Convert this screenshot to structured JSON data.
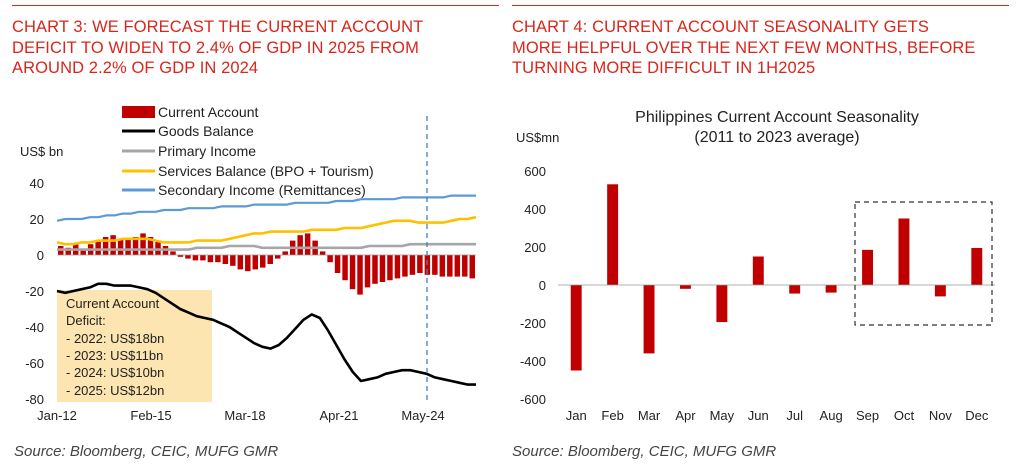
{
  "left": {
    "heading": "CHART 3: WE FORECAST THE CURRENT ACCOUNT DEFICIT TO WIDEN TO 2.4% OF GDP IN 2025 FROM AROUND 2.2% OF GDP IN 2024",
    "heading_lines": [
      "CHART 3: WE FORECAST THE CURRENT ACCOUNT",
      "DEFICIT TO WIDEN TO 2.4% OF GDP IN 2025 FROM",
      "AROUND 2.2% OF GDP IN 2024"
    ],
    "source": "Source: Bloomberg, CEIC, MUFG GMR",
    "annotation_lines": [
      "Current Account",
      "Deficit:",
      "- 2022: US$18bn",
      "- 2023: US$11bn",
      "- 2024: US$10bn",
      "- 2025: US$12bn"
    ]
  },
  "right": {
    "heading_lines": [
      "CHART 4: CURRENT ACCOUNT SEASONALITY GETS",
      "MORE HELPFUL OVER THE NEXT FEW MONTHS, BEFORE",
      "TURNING MORE DIFFICULT IN 1H2025"
    ],
    "source": "Source: Bloomberg, CEIC, MUFG GMR"
  },
  "colors": {
    "accent_red": "#d9261c",
    "current_account": "#c00000",
    "goods": "#000000",
    "primary": "#a6a6a6",
    "services": "#ffc000",
    "secondary": "#5b9bd5",
    "annotation_bg": "#fce5b0",
    "forecast_line": "#4a7ebb"
  },
  "chart_data": [
    {
      "type": "bar+line",
      "title": "",
      "ylabel": "US$ bn",
      "ylim": [
        -80,
        40
      ],
      "yticks": [
        40,
        20,
        0,
        -20,
        -40,
        -60,
        -80
      ],
      "xticks": [
        "Jan-12",
        "Feb-15",
        "Mar-18",
        "Apr-21",
        "May-24"
      ],
      "x_range": [
        "Jan-12",
        "Q4-25"
      ],
      "forecast_marker": "May-24",
      "legend_position": "top",
      "series": [
        {
          "name": "Current Account",
          "kind": "bar",
          "values": [
            5,
            4,
            6,
            3,
            6,
            8,
            10,
            11,
            9,
            9,
            10,
            12,
            10,
            8,
            5,
            2,
            -1,
            -2,
            -3,
            -3,
            -4,
            -4,
            -5,
            -6,
            -8,
            -9,
            -8,
            -7,
            -5,
            -2,
            2,
            8,
            11,
            12,
            8,
            2,
            -4,
            -10,
            -14,
            -19,
            -22,
            -18,
            -16,
            -15,
            -14,
            -13,
            -12,
            -11,
            -10,
            -11,
            -11,
            -12,
            -12,
            -12,
            -12,
            -13
          ]
        },
        {
          "name": "Goods Balance",
          "kind": "line",
          "values": [
            -20,
            -21,
            -20,
            -19,
            -18,
            -16,
            -16,
            -17,
            -17,
            -17,
            -18,
            -19,
            -21,
            -24,
            -27,
            -30,
            -32,
            -34,
            -35,
            -36,
            -38,
            -40,
            -43,
            -46,
            -49,
            -51,
            -52,
            -50,
            -46,
            -41,
            -36,
            -33,
            -35,
            -42,
            -50,
            -58,
            -65,
            -70,
            -69,
            -68,
            -66,
            -65,
            -64,
            -64,
            -65,
            -66,
            -68,
            -69,
            -70,
            -71,
            -72,
            -72
          ]
        },
        {
          "name": "Primary Income",
          "kind": "line",
          "values": [
            3,
            3,
            3,
            3,
            3,
            3,
            3,
            3,
            3,
            3,
            3,
            3,
            3,
            3,
            3,
            3,
            3,
            4,
            4,
            4,
            4,
            5,
            5,
            5,
            5,
            4,
            4,
            4,
            4,
            4,
            4,
            4,
            4,
            4,
            4,
            4,
            4,
            4,
            5,
            5,
            5,
            5,
            5,
            6,
            6,
            6,
            6,
            6,
            6,
            6,
            6,
            6
          ]
        },
        {
          "name": "Services Balance (BPO + Tourism)",
          "kind": "line",
          "values": [
            7,
            6,
            6,
            7,
            7,
            8,
            8,
            8,
            9,
            9,
            9,
            9,
            8,
            7,
            7,
            7,
            7,
            8,
            8,
            8,
            8,
            9,
            10,
            11,
            12,
            12,
            13,
            13,
            13,
            13,
            13,
            14,
            14,
            14,
            14,
            15,
            15,
            15,
            16,
            17,
            18,
            19,
            19,
            19,
            18,
            18,
            18,
            18,
            19,
            20,
            20,
            21
          ]
        },
        {
          "name": "Secondary Income (Remittances)",
          "kind": "line",
          "values": [
            19,
            20,
            20,
            20,
            21,
            21,
            22,
            22,
            23,
            23,
            24,
            24,
            24,
            25,
            25,
            25,
            26,
            26,
            26,
            26,
            27,
            27,
            27,
            27,
            28,
            28,
            28,
            28,
            28,
            29,
            29,
            29,
            29,
            29,
            30,
            30,
            30,
            31,
            31,
            31,
            31,
            31,
            32,
            32,
            32,
            32,
            32,
            32,
            33,
            33,
            33,
            33
          ]
        }
      ]
    },
    {
      "type": "bar",
      "title": "Philippines Current Account Seasonality",
      "subtitle": "(2011 to 2023 average)",
      "ylabel": "US$mn",
      "ylim": [
        -600,
        600
      ],
      "yticks": [
        600,
        400,
        200,
        0,
        -200,
        -400,
        -600
      ],
      "categories": [
        "Jan",
        "Feb",
        "Mar",
        "Apr",
        "May",
        "Jun",
        "Jul",
        "Aug",
        "Sep",
        "Oct",
        "Nov",
        "Dec"
      ],
      "values": [
        -450,
        530,
        -360,
        -20,
        -195,
        150,
        -45,
        -40,
        185,
        350,
        -60,
        195
      ],
      "highlight_range": [
        "Sep",
        "Dec"
      ]
    }
  ]
}
